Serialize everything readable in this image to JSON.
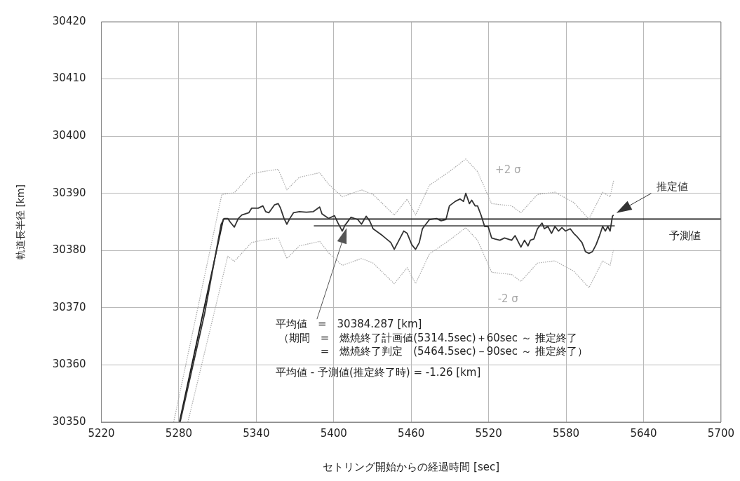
{
  "chart_data": {
    "type": "line",
    "xlabel": "セトリング開始からの経過時間 [sec]",
    "ylabel": "軌道長半径 [km]",
    "xlim": [
      5220,
      5700
    ],
    "xticks": [
      5220,
      5280,
      5340,
      5400,
      5460,
      5520,
      5580,
      5640,
      5700
    ],
    "ylim": [
      30350,
      30420
    ],
    "yticks": [
      30350,
      30360,
      30370,
      30380,
      30390,
      30400,
      30410,
      30420
    ],
    "grid": true,
    "legend": false,
    "marker": "none",
    "series": [
      {
        "name": "+2 σ",
        "color": "#a8a8a8",
        "line_style": "dotted",
        "x": [
          5276,
          5313.3,
          5323,
          5336.4,
          5345.1,
          5357,
          5363.7,
          5373.3,
          5389.1,
          5396,
          5406.6,
          5421.5,
          5430.5,
          5446.9,
          5456.9,
          5463.4,
          5474.1,
          5489.6,
          5502.3,
          5511.4,
          5522.3,
          5537.8,
          5545,
          5557.8,
          5571.4,
          5585.9,
          5597.7,
          5608.3,
          5614.1,
          5616.8
        ],
        "values": [
          30350,
          30389.8,
          30390.1,
          30393.4,
          30393.8,
          30394.2,
          30390.6,
          30392.8,
          30393.6,
          30391.6,
          30389.4,
          30390.6,
          30389.8,
          30386.2,
          30389,
          30386.2,
          30391.4,
          30393.8,
          30396,
          30393.8,
          30388.2,
          30387.8,
          30386.6,
          30389.8,
          30390.2,
          30388.4,
          30385.5,
          30390.2,
          30389.4,
          30392.2
        ]
      },
      {
        "name": "推定値",
        "color": "#333333",
        "line_style": "solid",
        "x": [
          5281,
          5300,
          5312.8,
          5315.2,
          5317.9,
          5319.7,
          5323,
          5326.1,
          5328.8,
          5334.2,
          5336.4,
          5341.5,
          5345.1,
          5347.3,
          5349.7,
          5354.2,
          5357,
          5358.8,
          5361.5,
          5363.7,
          5366,
          5368.8,
          5373.3,
          5378.8,
          5384.2,
          5389.1,
          5390.9,
          5396,
          5400.6,
          5403.3,
          5406.6,
          5408.7,
          5413.3,
          5418.7,
          5421.5,
          5425.1,
          5427.8,
          5430.5,
          5437.8,
          5444.2,
          5446.9,
          5448.7,
          5454.2,
          5456.9,
          5460.5,
          5463.4,
          5466.3,
          5468.7,
          5474.1,
          5479.6,
          5483.2,
          5486.9,
          5489.6,
          5494.2,
          5497.8,
          5500.5,
          5502.3,
          5505.1,
          5506.9,
          5509.6,
          5511.4,
          5514.1,
          5516.9,
          5519.6,
          5522.3,
          5525,
          5528.7,
          5532.3,
          5537.8,
          5540.5,
          5542.3,
          5545,
          5547.8,
          5550.5,
          5552.3,
          5555,
          5557.8,
          5561.4,
          5563.2,
          5565.9,
          5568.7,
          5571.4,
          5574.1,
          5576.8,
          5579.6,
          5583.2,
          5585.9,
          5588.6,
          5592.3,
          5595,
          5597.7,
          5600.4,
          5603.2,
          5605.9,
          5608.3,
          5610.4,
          5612.3,
          5614.1,
          5615.9,
          5616.8
        ],
        "values": [
          30350,
          30369,
          30384.6,
          30385.6,
          30385.6,
          30385,
          30384.1,
          30385.6,
          30386.2,
          30386.6,
          30387.4,
          30387.4,
          30387.8,
          30386.8,
          30386.6,
          30388,
          30388.2,
          30387.4,
          30385.6,
          30384.6,
          30385.6,
          30386.6,
          30386.8,
          30386.7,
          30386.8,
          30387.6,
          30386.4,
          30385.6,
          30386.1,
          30384.8,
          30383.4,
          30384.4,
          30385.8,
          30385.4,
          30384.6,
          30386,
          30385.2,
          30383.8,
          30382.6,
          30381.4,
          30380.2,
          30381,
          30383.4,
          30383,
          30381,
          30380.2,
          30381.4,
          30383.8,
          30385.4,
          30385.6,
          30385.2,
          30385.4,
          30387.8,
          30388.6,
          30389,
          30388.6,
          30390,
          30388.2,
          30388.8,
          30387.8,
          30387.8,
          30386.2,
          30384.2,
          30384.2,
          30382.2,
          30382,
          30381.8,
          30382.2,
          30381.8,
          30382.6,
          30381.8,
          30380.6,
          30381.8,
          30380.8,
          30381.8,
          30382,
          30383.8,
          30384.8,
          30383.8,
          30384.2,
          30383,
          30384.2,
          30383.4,
          30384,
          30383.4,
          30383.8,
          30383,
          30382.4,
          30381.4,
          30379.8,
          30379.5,
          30379.8,
          30381,
          30382.6,
          30384.2,
          30383.4,
          30384.2,
          30383.4,
          30386,
          30386.2
        ]
      },
      {
        "name": "-2 σ",
        "color": "#a8a8a8",
        "line_style": "dotted",
        "x": [
          5287,
          5317.9,
          5323,
          5336.4,
          5345.1,
          5357,
          5363.7,
          5373.3,
          5389.1,
          5396,
          5406.6,
          5421.5,
          5430.5,
          5446.9,
          5456.9,
          5463.4,
          5474.1,
          5489.6,
          5502.3,
          5511.4,
          5522.3,
          5537.8,
          5545,
          5557.8,
          5571.4,
          5585.9,
          5597.7,
          5608.3,
          5614.1,
          5616.8
        ],
        "values": [
          30350,
          30379,
          30378.1,
          30381.4,
          30381.8,
          30382.2,
          30378.6,
          30380.8,
          30381.6,
          30379.6,
          30377.4,
          30378.6,
          30377.8,
          30374.2,
          30377,
          30374.2,
          30379.4,
          30381.8,
          30384,
          30381.8,
          30376.2,
          30375.8,
          30374.6,
          30377.8,
          30378.2,
          30376.4,
          30373.5,
          30378.2,
          30377.4,
          30380.2
        ]
      },
      {
        "name": "予測値",
        "color": "#1a1a1a",
        "line_style": "solid",
        "x": [
          5280.5,
          5314.5,
          5700
        ],
        "values": [
          30350,
          30385.5,
          30385.5
        ]
      },
      {
        "color": "#4a4a4a",
        "line_style": "solid",
        "x": [
          5384.6,
          5617.7
        ],
        "values": [
          30384.3,
          30384.3
        ]
      }
    ],
    "annotations": [
      "平均値　=　30384.287 [km]",
      "（期間　=　燃焼終了計画値(5314.5sec)＋60sec ～ 推定終了",
      "　　　　=　燃焼終了判定　(5464.5sec)－90sec ～ 推定終了）",
      "平均値 - 予測値(推定終了時) = -1.26 [km]"
    ]
  }
}
